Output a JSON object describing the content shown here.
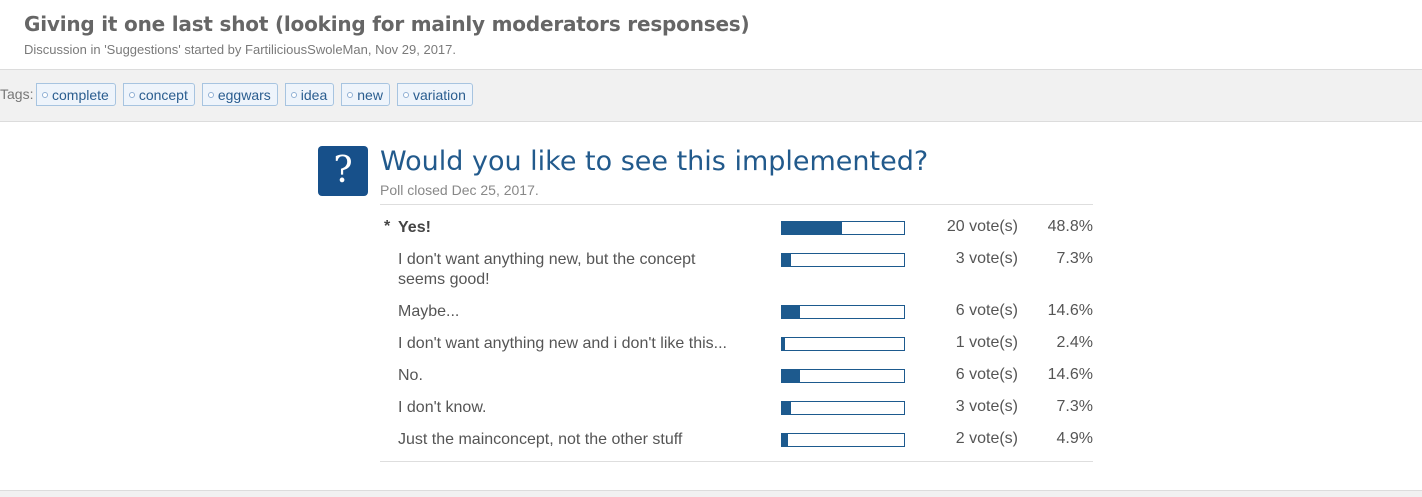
{
  "thread": {
    "title": "Giving it one last shot (looking for mainly moderators responses)",
    "meta": "Discussion in 'Suggestions' started by FartiliciousSwoleMan, Nov 29, 2017."
  },
  "tags": {
    "label": "Tags:",
    "items": [
      "complete",
      "concept",
      "eggwars",
      "idea",
      "new",
      "variation"
    ]
  },
  "poll": {
    "icon": "?",
    "question": "Would you like to see this implemented?",
    "status": "Poll closed Dec 25, 2017.",
    "selected_marker": "*",
    "responses": [
      {
        "text": "Yes!",
        "votes": "20 vote(s)",
        "percent": "48.8%",
        "fraction": 0.488,
        "selected": true
      },
      {
        "text": "I don't want anything new, but the concept seems good!",
        "votes": "3 vote(s)",
        "percent": "7.3%",
        "fraction": 0.073,
        "selected": false
      },
      {
        "text": "Maybe...",
        "votes": "6 vote(s)",
        "percent": "14.6%",
        "fraction": 0.146,
        "selected": false
      },
      {
        "text": "I don't want anything new and i don't like this...",
        "votes": "1 vote(s)",
        "percent": "2.4%",
        "fraction": 0.024,
        "selected": false
      },
      {
        "text": "No.",
        "votes": "6 vote(s)",
        "percent": "14.6%",
        "fraction": 0.146,
        "selected": false
      },
      {
        "text": "I don't know.",
        "votes": "3 vote(s)",
        "percent": "7.3%",
        "fraction": 0.073,
        "selected": false
      },
      {
        "text": "Just the mainconcept, not the other stuff",
        "votes": "2 vote(s)",
        "percent": "4.9%",
        "fraction": 0.049,
        "selected": false
      }
    ]
  },
  "colors": {
    "accent": "#1d5a8e",
    "question": "#225a8c",
    "tag_border": "#a7c4e0",
    "tag_bg": "#eef4fb"
  }
}
